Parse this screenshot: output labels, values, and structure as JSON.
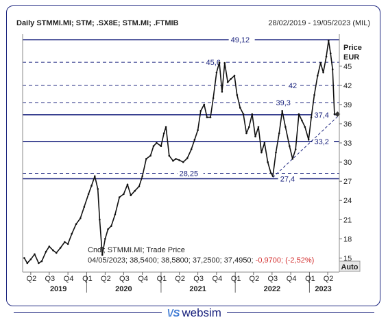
{
  "header": {
    "title": "Daily STMMI.MI; STM; .SX8E; STM.MI; .FTMIB",
    "range": "28/02/2019 - 19/05/2023 (MIL)"
  },
  "footer": {
    "brand_mark": "\\/S",
    "brand_name": "websim"
  },
  "colors": {
    "line": "#1a237e",
    "price": "#111111",
    "border": "#1a237e",
    "negative": "#d32f2f",
    "brand_accent": "#3f7bd4"
  },
  "chart_data": {
    "type": "candlestick",
    "ylabel": "Price",
    "yunit": "EUR",
    "ylim": [
      12.8,
      50
    ],
    "yticks": [
      15,
      18,
      21,
      24,
      27,
      30,
      33,
      36,
      39,
      42,
      45
    ],
    "ytick_labels": [
      "15",
      "18",
      "21",
      "24",
      "27",
      "30",
      "33",
      "36",
      "39",
      "42",
      "45"
    ],
    "scale_mode": "Auto",
    "x_range": [
      "2019-02-28",
      "2023-05-19"
    ],
    "quarter_labels": [
      "Q2",
      "Q3",
      "Q4",
      "Q1",
      "Q2",
      "Q3",
      "Q4",
      "Q1",
      "Q2",
      "Q3",
      "Q4",
      "Q1",
      "Q2",
      "Q3",
      "Q4",
      "Q1",
      "Q2"
    ],
    "quarter_dates": [
      "2019-04-01",
      "2019-07-01",
      "2019-10-01",
      "2020-01-01",
      "2020-04-01",
      "2020-07-01",
      "2020-10-01",
      "2021-01-01",
      "2021-04-01",
      "2021-07-01",
      "2021-10-01",
      "2022-01-01",
      "2022-04-01",
      "2022-07-01",
      "2022-10-01",
      "2023-01-01",
      "2023-04-01"
    ],
    "years": [
      {
        "label": "2019",
        "date": "2019-08-15"
      },
      {
        "label": "2020",
        "date": "2020-07-01"
      },
      {
        "label": "2021",
        "date": "2021-07-01"
      },
      {
        "label": "2022",
        "date": "2022-07-01"
      },
      {
        "label": "2023",
        "date": "2023-03-10"
      }
    ],
    "levels": [
      {
        "value": 49.12,
        "label": "49,12",
        "style": "solid",
        "label_date": "2021-12-10"
      },
      {
        "value": 45.6,
        "label": "45,6",
        "style": "dashed",
        "label_date": "2021-08-10"
      },
      {
        "value": 42,
        "label": "42",
        "style": "dashed",
        "label_date": "2022-09-20"
      },
      {
        "value": 39.3,
        "label": "39,3",
        "style": "dashed",
        "label_date": "2022-07-20"
      },
      {
        "value": 37.4,
        "label": "37,4",
        "style": "solid",
        "label_date": "2023-01-25"
      },
      {
        "value": 33.2,
        "label": "33,2",
        "style": "solid",
        "label_date": "2023-01-25"
      },
      {
        "value": 28.25,
        "label": "28,25",
        "style": "dashed",
        "label_date": "2021-04-01"
      },
      {
        "value": 27.4,
        "label": "27,4",
        "style": "solid",
        "label_date": "2022-08-10"
      }
    ],
    "trendline": {
      "from": {
        "date": "2022-07-05",
        "value": 27.6
      },
      "to": {
        "date": "2023-05-19",
        "value": 37.1
      }
    },
    "series": [
      {
        "name": "STMMI.MI",
        "points": [
          [
            "2019-02-28",
            15.0
          ],
          [
            "2019-03-15",
            14.2
          ],
          [
            "2019-04-01",
            14.8
          ],
          [
            "2019-04-20",
            15.6
          ],
          [
            "2019-05-10",
            14.2
          ],
          [
            "2019-05-25",
            14.5
          ],
          [
            "2019-06-15",
            16.0
          ],
          [
            "2019-07-01",
            16.8
          ],
          [
            "2019-07-20",
            16.2
          ],
          [
            "2019-08-05",
            15.8
          ],
          [
            "2019-08-25",
            16.6
          ],
          [
            "2019-09-15",
            17.5
          ],
          [
            "2019-10-01",
            17.2
          ],
          [
            "2019-10-20",
            18.8
          ],
          [
            "2019-11-10",
            20.3
          ],
          [
            "2019-12-01",
            21.2
          ],
          [
            "2019-12-20",
            23.0
          ],
          [
            "2020-01-10",
            25.0
          ],
          [
            "2020-01-25",
            26.3
          ],
          [
            "2020-02-10",
            27.8
          ],
          [
            "2020-02-25",
            25.8
          ],
          [
            "2020-03-05",
            21.0
          ],
          [
            "2020-03-18",
            15.5
          ],
          [
            "2020-04-01",
            18.0
          ],
          [
            "2020-04-15",
            19.5
          ],
          [
            "2020-05-01",
            20.0
          ],
          [
            "2020-05-20",
            21.8
          ],
          [
            "2020-06-10",
            24.5
          ],
          [
            "2020-07-01",
            25.0
          ],
          [
            "2020-07-20",
            26.5
          ],
          [
            "2020-08-05",
            24.8
          ],
          [
            "2020-08-25",
            25.5
          ],
          [
            "2020-09-15",
            26.2
          ],
          [
            "2020-10-01",
            27.8
          ],
          [
            "2020-10-20",
            30.5
          ],
          [
            "2020-11-10",
            31.0
          ],
          [
            "2020-11-25",
            32.5
          ],
          [
            "2020-12-10",
            33.0
          ],
          [
            "2021-01-01",
            32.5
          ],
          [
            "2021-01-15",
            34.5
          ],
          [
            "2021-01-25",
            35.5
          ],
          [
            "2021-02-10",
            31.0
          ],
          [
            "2021-03-01",
            30.2
          ],
          [
            "2021-03-15",
            30.5
          ],
          [
            "2021-04-01",
            30.3
          ],
          [
            "2021-04-20",
            30.0
          ],
          [
            "2021-05-10",
            30.6
          ],
          [
            "2021-05-30",
            32.0
          ],
          [
            "2021-06-15",
            33.5
          ],
          [
            "2021-07-01",
            35.0
          ],
          [
            "2021-07-15",
            38.0
          ],
          [
            "2021-08-01",
            39.0
          ],
          [
            "2021-08-15",
            37.0
          ],
          [
            "2021-09-01",
            37.0
          ],
          [
            "2021-09-15",
            40.0
          ],
          [
            "2021-10-01",
            44.0
          ],
          [
            "2021-10-15",
            45.6
          ],
          [
            "2021-10-28",
            41.0
          ],
          [
            "2021-11-10",
            45.5
          ],
          [
            "2021-11-25",
            42.5
          ],
          [
            "2021-12-10",
            43.0
          ],
          [
            "2021-12-28",
            43.5
          ],
          [
            "2022-01-10",
            40.5
          ],
          [
            "2022-01-25",
            38.5
          ],
          [
            "2022-02-10",
            37.5
          ],
          [
            "2022-02-25",
            34.5
          ],
          [
            "2022-03-10",
            35.5
          ],
          [
            "2022-03-25",
            37.5
          ],
          [
            "2022-04-10",
            34.0
          ],
          [
            "2022-04-25",
            35.5
          ],
          [
            "2022-05-10",
            31.5
          ],
          [
            "2022-05-25",
            33.0
          ],
          [
            "2022-06-10",
            30.0
          ],
          [
            "2022-06-25",
            28.3
          ],
          [
            "2022-07-05",
            27.8
          ],
          [
            "2022-07-20",
            31.5
          ],
          [
            "2022-08-05",
            34.5
          ],
          [
            "2022-08-20",
            38.0
          ],
          [
            "2022-09-05",
            35.5
          ],
          [
            "2022-09-25",
            32.5
          ],
          [
            "2022-10-10",
            30.5
          ],
          [
            "2022-10-25",
            32.0
          ],
          [
            "2022-11-10",
            37.5
          ],
          [
            "2022-11-25",
            36.5
          ],
          [
            "2022-12-10",
            35.5
          ],
          [
            "2022-12-28",
            33.5
          ],
          [
            "2023-01-10",
            37.0
          ],
          [
            "2023-01-25",
            40.5
          ],
          [
            "2023-02-10",
            43.5
          ],
          [
            "2023-02-25",
            45.5
          ],
          [
            "2023-03-10",
            44.0
          ],
          [
            "2023-03-25",
            46.5
          ],
          [
            "2023-04-05",
            49.0
          ],
          [
            "2023-04-15",
            47.0
          ],
          [
            "2023-04-25",
            44.5
          ],
          [
            "2023-05-04",
            37.5
          ],
          [
            "2023-05-19",
            37.5
          ]
        ]
      }
    ],
    "annotations": {
      "line1": "Cndl; STMMI.MI; Trade Price",
      "line2_prefix": "04/05/2023; 38,5400; 38,5800; 37,2500; 37,4950;",
      "line2_change": "-0,9700; (-2,52%)"
    },
    "last_value": 37.495,
    "last_date": "2023-05-19",
    "grid": false
  }
}
